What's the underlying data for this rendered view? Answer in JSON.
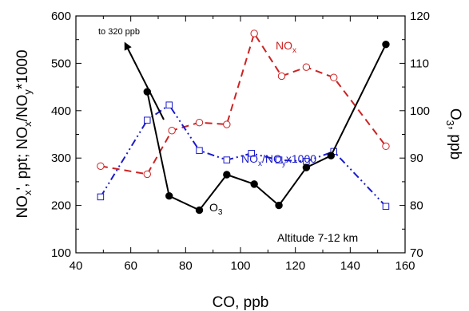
{
  "chart_data": {
    "type": "line",
    "xlabel": "CO, ppb",
    "ylabel_left": {
      "main": "NO",
      "sub1": "x",
      "mid1": "', ppt; NO",
      "sub2": "x",
      "mid2": "/NO",
      "sub3": "y",
      "tail": "*1000"
    },
    "ylabel_right": {
      "main": "O",
      "sub": "3",
      "tail": ", ppb"
    },
    "xlim": [
      40,
      160
    ],
    "ylim_left": [
      100,
      600
    ],
    "ylim_right": [
      70,
      120
    ],
    "x_ticks": [
      "40",
      "60",
      "80",
      "100",
      "120",
      "140",
      "160"
    ],
    "y_left_ticks": [
      "100",
      "200",
      "300",
      "400",
      "500",
      "600"
    ],
    "y_right_ticks": [
      "70",
      "80",
      "90",
      "100",
      "110",
      "120"
    ],
    "grid": false,
    "colors": {
      "nox": "#cc2222",
      "ratio": "#1a1acc",
      "o3": "#000000"
    },
    "series": [
      {
        "id": "nox",
        "name": "NOx",
        "axis": "left",
        "label": {
          "main": "NO",
          "sub": "x"
        },
        "x": [
          49,
          66,
          75,
          85,
          95,
          105,
          115,
          124,
          134,
          153
        ],
        "y": [
          283,
          266,
          358,
          375,
          371,
          563,
          473,
          492,
          470,
          325
        ]
      },
      {
        "id": "ratio",
        "name": "NOx/NOy x1000",
        "axis": "left",
        "label": {
          "a": "NO",
          "asub": "x",
          "b": "/NO",
          "bsub": "y",
          "c": "x1000"
        },
        "x": [
          49,
          66,
          74,
          85,
          95,
          104,
          114,
          124,
          134,
          153
        ],
        "y": [
          218,
          380,
          412,
          316,
          296,
          310,
          296,
          293,
          314,
          198
        ]
      },
      {
        "id": "o3",
        "name": "O3",
        "axis": "right",
        "label": {
          "main": "O",
          "sub": "3"
        },
        "x": [
          66,
          74,
          85,
          95,
          105,
          114,
          124,
          133,
          153
        ],
        "y": [
          104,
          82,
          79,
          86.5,
          84.5,
          80,
          88,
          90.5,
          114
        ]
      }
    ],
    "annotations": {
      "arrow_label": "to 320 ppb",
      "altitude": "Altitude 7-12 km"
    }
  }
}
